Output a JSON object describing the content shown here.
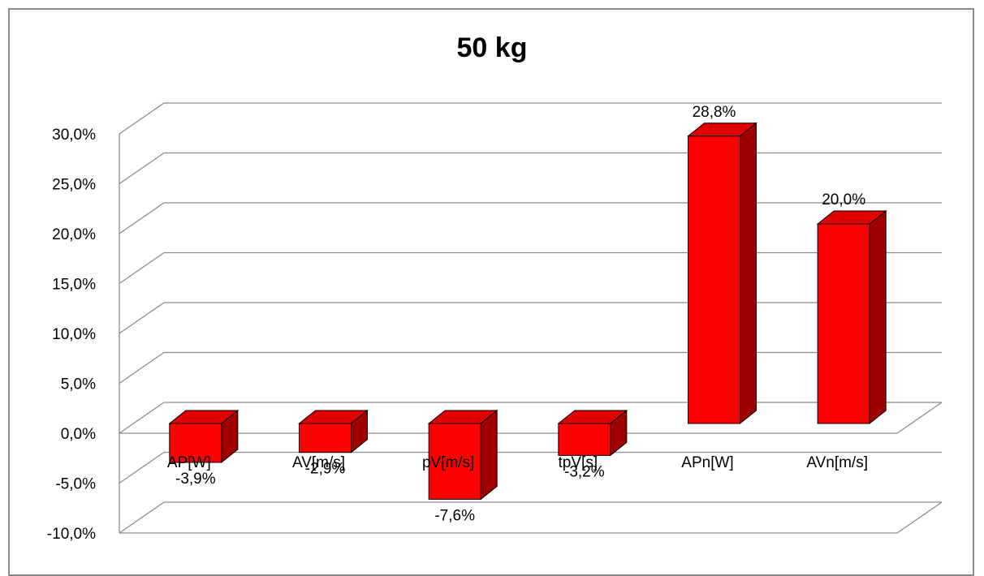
{
  "chart_data": {
    "type": "bar",
    "title": "50 kg",
    "categories": [
      "AP[W]",
      "AV[m/s]",
      "pV[m/s]",
      "tpV[s]",
      "APn[W]",
      "AVn[m/s]"
    ],
    "values": [
      -3.9,
      -2.9,
      -7.6,
      -3.2,
      28.8,
      20.0
    ],
    "value_labels": [
      "-3,9%",
      "-2,9%",
      "-7,6%",
      "-3,2%",
      "28,8%",
      "20,0%"
    ],
    "y_ticks": [
      -10,
      -5,
      0,
      5,
      10,
      15,
      20,
      25,
      30
    ],
    "y_tick_labels": [
      "-10,0%",
      "-5,0%",
      "0,0%",
      "5,0%",
      "10,0%",
      "15,0%",
      "20,0%",
      "25,0%",
      "30,0%"
    ],
    "ylim": [
      -10,
      30
    ],
    "xlabel": "",
    "ylabel": "",
    "grid": true,
    "legend": "none",
    "style": "3d-column",
    "colors": {
      "bar_front": "#ff0000",
      "bar_top": "#e00000",
      "bar_side": "#a00000",
      "grid": "#8c8c8c"
    }
  }
}
